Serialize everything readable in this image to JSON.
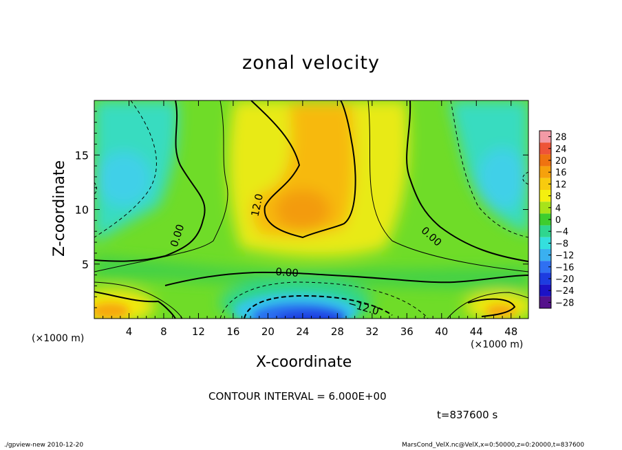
{
  "chart_data": {
    "type": "heatmap",
    "title": "zonal velocity",
    "xlabel": "X-coordinate",
    "ylabel": "Z-coordinate",
    "x_unit_label": "(×1000 m)",
    "x_ticks": [
      4,
      8,
      12,
      16,
      20,
      24,
      28,
      32,
      36,
      40,
      44,
      48
    ],
    "y_ticks": [
      5,
      10,
      15
    ],
    "xlim": [
      0,
      50
    ],
    "ylim": [
      0,
      20
    ],
    "colorbar": {
      "labels": [
        "28",
        "24",
        "20",
        "16",
        "12",
        "8",
        "4",
        "0",
        "−4",
        "−8",
        "−12",
        "−16",
        "−20",
        "−24",
        "−28"
      ],
      "levels": [
        28,
        24,
        20,
        16,
        12,
        8,
        4,
        0,
        -4,
        -8,
        -12,
        -16,
        -20,
        -24,
        -28
      ],
      "colors": [
        "#f39aa6",
        "#ee5438",
        "#ef7310",
        "#f6a10c",
        "#f8cb0e",
        "#f4f00f",
        "#a8e31a",
        "#3ecd2e",
        "#2fd68f",
        "#34dfde",
        "#3ab0f0",
        "#2f70f2",
        "#1d3ce0",
        "#1c12c6",
        "#55128c"
      ]
    },
    "contour_labels": [
      {
        "text": "0.00",
        "x": 9.6,
        "z": 7.6,
        "angle": -72
      },
      {
        "text": "12.0",
        "x": 18.8,
        "z": 10.4,
        "angle": -78
      },
      {
        "text": "0.00",
        "x": 38.8,
        "z": 7.5,
        "angle": 42
      },
      {
        "text": "0.00",
        "x": 22.2,
        "z": 4.2,
        "angle": 4
      },
      {
        "text": "−12.0",
        "x": 31.0,
        "z": 1.0,
        "angle": 16
      }
    ]
  },
  "annotations": {
    "contour_interval": "CONTOUR INTERVAL = 6.000E+00",
    "time": "t=837600 s",
    "footer_left": "./gpview-new  2010-12-20",
    "footer_right": "MarsCond_VelX.nc@VelX,x=0:50000,z=0:20000,t=837600"
  }
}
